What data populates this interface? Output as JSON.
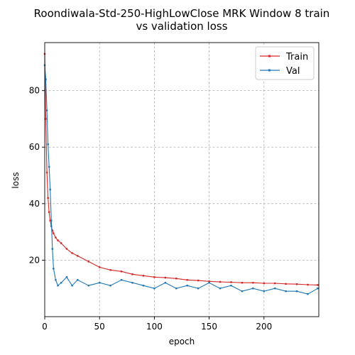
{
  "chart_data": {
    "type": "line",
    "title_lines": [
      "Roondiwala-Std-250-HighLowClose MRK Window 8 train",
      "vs validation loss"
    ],
    "xlabel": "epoch",
    "ylabel": "loss",
    "xlim": [
      0,
      250
    ],
    "ylim": [
      0,
      97
    ],
    "xticks": [
      0,
      50,
      100,
      150,
      200
    ],
    "yticks": [
      20,
      40,
      60,
      80
    ],
    "grid": true,
    "legend_position": "top-right",
    "x": [
      0,
      1,
      2,
      3,
      4,
      5,
      6,
      7,
      8,
      10,
      12,
      15,
      20,
      25,
      30,
      40,
      50,
      60,
      70,
      80,
      90,
      100,
      110,
      120,
      130,
      140,
      150,
      160,
      170,
      180,
      190,
      200,
      210,
      220,
      230,
      240,
      249
    ],
    "series": [
      {
        "name": "Train",
        "color": "#d62728",
        "values": [
          93,
          70,
          51,
          42,
          37,
          34,
          32,
          30.5,
          29.5,
          28,
          27,
          26,
          24,
          22.5,
          21.5,
          19.5,
          17.5,
          16.5,
          16,
          15,
          14.5,
          14,
          13.8,
          13.5,
          13,
          12.8,
          12.5,
          12.3,
          12.2,
          12,
          12,
          11.8,
          11.8,
          11.6,
          11.5,
          11.3,
          11.2
        ]
      },
      {
        "name": "Val",
        "color": "#1f77b4",
        "values": [
          89,
          84,
          73,
          61,
          53,
          45,
          34,
          24,
          17,
          13,
          11,
          12,
          14,
          11,
          13,
          11,
          12,
          11,
          13,
          12,
          11,
          10,
          12,
          10,
          11,
          10,
          12,
          10,
          11,
          9,
          10,
          9,
          10,
          9,
          9,
          8,
          10
        ]
      }
    ]
  }
}
